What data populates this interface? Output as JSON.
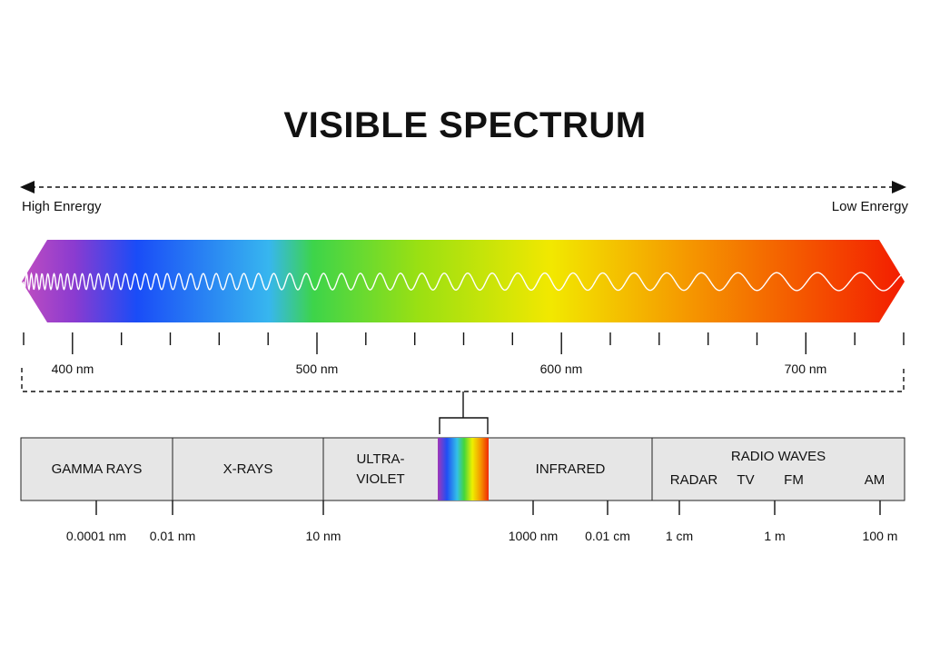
{
  "title": "VISIBLE SPECTRUM",
  "energy": {
    "high": "High Enrergy",
    "low": "Low Enrergy"
  },
  "wavelength_labels": [
    "400 nm",
    "500 nm",
    "600 nm",
    "700 nm"
  ],
  "bands": {
    "gamma": "GAMMA RAYS",
    "xrays": "X-RAYS",
    "ultraviolet_1": "ULTRA-",
    "ultraviolet_2": "VIOLET",
    "infrared": "INFRARED",
    "radio": "RADIO WAVES",
    "radio_sub": [
      "RADAR",
      "TV",
      "FM",
      "AM"
    ]
  },
  "scale_labels": [
    "0.0001 nm",
    "0.01 nm",
    "10 nm",
    "1000 nm",
    "0.01 cm",
    "1 cm",
    "1 m",
    "100 m"
  ],
  "colors": {
    "spectrum": [
      "#a52fb5",
      "#1e4ff5",
      "#2fb8f0",
      "#3ed63a",
      "#e8f000",
      "#f7a000",
      "#f42f00"
    ],
    "band_fill": "#e6e6e6",
    "line": "#222222"
  }
}
